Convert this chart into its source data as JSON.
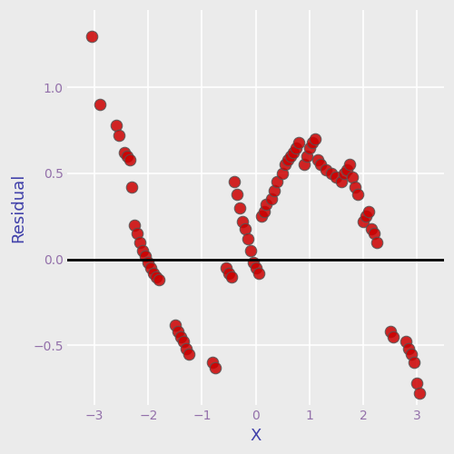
{
  "title": "",
  "xlabel": "X",
  "ylabel": "Residual",
  "xlim": [
    -3.5,
    3.5
  ],
  "ylim": [
    -0.85,
    1.45
  ],
  "hline_y": 0.0,
  "background_color": "#EBEBEB",
  "grid_color": "#FFFFFF",
  "marker_face_color": "#CC0000",
  "marker_edge_color": "#555555",
  "marker_size": 9,
  "marker_alpha": 0.85,
  "xticks": [
    -3,
    -2,
    -1,
    0,
    1,
    2,
    3
  ],
  "yticks": [
    -0.5,
    0.0,
    0.5,
    1.0
  ],
  "axis_label_color": "#4040AA",
  "tick_label_color": "#9370AA",
  "x": [
    -3.05,
    -2.9,
    -2.6,
    -2.55,
    -2.45,
    -2.4,
    -2.35,
    -2.3,
    -2.25,
    -2.2,
    -2.15,
    -2.1,
    -2.05,
    -2.0,
    -1.95,
    -1.9,
    -1.85,
    -1.8,
    -1.5,
    -1.45,
    -1.4,
    -1.35,
    -1.3,
    -1.25,
    -0.8,
    -0.75,
    -0.55,
    -0.5,
    -0.45,
    -0.4,
    -0.35,
    -0.3,
    -0.25,
    -0.2,
    -0.15,
    -0.1,
    -0.05,
    0.0,
    0.05,
    0.1,
    0.15,
    0.2,
    0.3,
    0.35,
    0.4,
    0.5,
    0.55,
    0.6,
    0.65,
    0.7,
    0.75,
    0.8,
    0.9,
    0.95,
    1.0,
    1.05,
    1.1,
    1.15,
    1.2,
    1.3,
    1.4,
    1.5,
    1.6,
    1.65,
    1.7,
    1.75,
    1.8,
    1.85,
    1.9,
    2.0,
    2.05,
    2.1,
    2.15,
    2.2,
    2.25,
    2.5,
    2.55,
    2.8,
    2.85,
    2.9,
    2.95,
    3.0,
    3.05
  ],
  "y": [
    1.3,
    0.9,
    0.78,
    0.72,
    0.62,
    0.6,
    0.58,
    0.42,
    0.2,
    0.15,
    0.1,
    0.05,
    0.02,
    -0.02,
    -0.05,
    -0.08,
    -0.1,
    -0.12,
    -0.38,
    -0.42,
    -0.45,
    -0.48,
    -0.52,
    -0.55,
    -0.6,
    -0.63,
    -0.05,
    -0.08,
    -0.1,
    0.45,
    0.38,
    0.3,
    0.22,
    0.18,
    0.12,
    0.05,
    -0.02,
    -0.05,
    -0.08,
    0.25,
    0.28,
    0.32,
    0.35,
    0.4,
    0.45,
    0.5,
    0.55,
    0.58,
    0.6,
    0.62,
    0.65,
    0.68,
    0.55,
    0.6,
    0.65,
    0.68,
    0.7,
    0.58,
    0.55,
    0.52,
    0.5,
    0.48,
    0.45,
    0.5,
    0.52,
    0.55,
    0.48,
    0.42,
    0.38,
    0.22,
    0.25,
    0.28,
    0.18,
    0.15,
    0.1,
    -0.42,
    -0.45,
    -0.48,
    -0.52,
    -0.55,
    -0.6,
    -0.72,
    -0.78
  ]
}
